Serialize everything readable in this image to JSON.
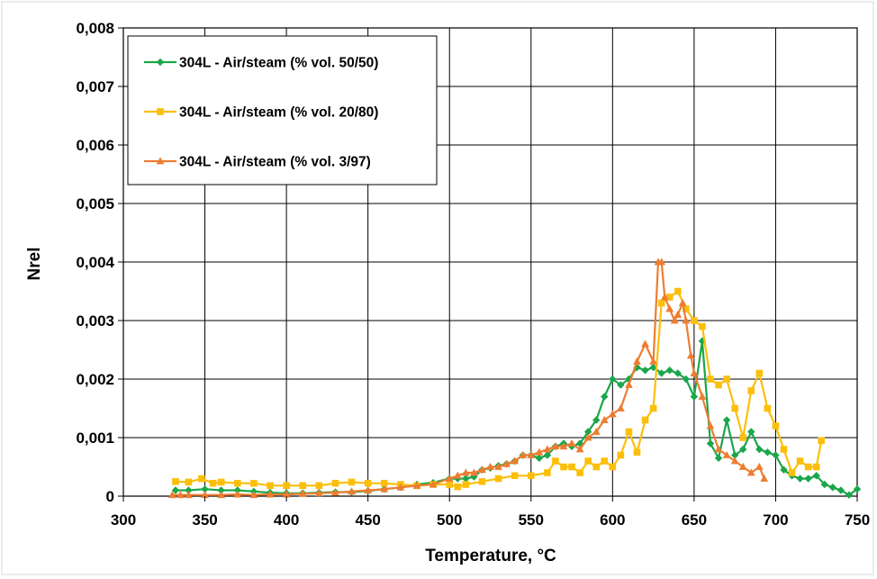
{
  "chart_data": {
    "type": "line",
    "title": "",
    "xlabel": "Temperature, °C",
    "ylabel": "Nrel",
    "xlim": [
      300,
      750
    ],
    "ylim": [
      0,
      0.008
    ],
    "x_ticks": [
      300,
      350,
      400,
      450,
      500,
      550,
      600,
      650,
      700,
      750
    ],
    "x_tick_labels": [
      "300",
      "350",
      "400",
      "450",
      "500",
      "550",
      "600",
      "650",
      "700",
      "750"
    ],
    "y_ticks": [
      0,
      0.001,
      0.002,
      0.003,
      0.004,
      0.005,
      0.006,
      0.007,
      0.008
    ],
    "y_tick_labels": [
      "0",
      "0,001",
      "0,002",
      "0,003",
      "0,004",
      "0,005",
      "0,006",
      "0,007",
      "0,008"
    ],
    "grid": true,
    "legend_position": "top-left",
    "series": [
      {
        "name": "304L - Air/steam (% vol. 50/50)",
        "color": "#1aa64a",
        "marker": "diamond",
        "x": [
          332,
          340,
          350,
          360,
          370,
          380,
          390,
          400,
          410,
          420,
          430,
          440,
          450,
          460,
          470,
          480,
          490,
          500,
          505,
          510,
          515,
          520,
          525,
          530,
          535,
          540,
          545,
          550,
          555,
          560,
          565,
          570,
          575,
          580,
          585,
          590,
          595,
          600,
          605,
          610,
          615,
          620,
          625,
          630,
          635,
          640,
          645,
          650,
          655,
          660,
          665,
          670,
          675,
          680,
          685,
          690,
          695,
          700,
          705,
          710,
          715,
          720,
          725,
          730,
          735,
          740,
          745,
          750
        ],
        "y": [
          0.0001,
          0.0001,
          0.00012,
          0.0001,
          0.0001,
          8e-05,
          6e-05,
          5e-05,
          5e-05,
          6e-05,
          7e-05,
          7e-05,
          9e-05,
          0.00012,
          0.00015,
          0.0002,
          0.00023,
          0.0003,
          0.0003,
          0.0003,
          0.00033,
          0.00045,
          0.00048,
          0.00052,
          0.00055,
          0.0006,
          0.0007,
          0.0007,
          0.00065,
          0.0007,
          0.00085,
          0.0009,
          0.00085,
          0.0009,
          0.0011,
          0.0013,
          0.0017,
          0.002,
          0.0019,
          0.002,
          0.0022,
          0.00215,
          0.0022,
          0.0021,
          0.00215,
          0.0021,
          0.002,
          0.0017,
          0.00265,
          0.0009,
          0.00065,
          0.0013,
          0.0007,
          0.0008,
          0.0011,
          0.0008,
          0.00075,
          0.0007,
          0.00045,
          0.00035,
          0.0003,
          0.0003,
          0.00035,
          0.0002,
          0.00015,
          0.0001,
          2e-05,
          0.00012
        ]
      },
      {
        "name": "304L - Air/steam (% vol. 20/80)",
        "color": "#fbbf0b",
        "marker": "square",
        "x": [
          332,
          340,
          348,
          355,
          360,
          370,
          380,
          390,
          400,
          410,
          420,
          430,
          440,
          450,
          460,
          470,
          480,
          490,
          500,
          505,
          510,
          520,
          530,
          540,
          550,
          560,
          565,
          570,
          575,
          580,
          585,
          590,
          595,
          600,
          605,
          610,
          615,
          620,
          625,
          630,
          635,
          640,
          645,
          650,
          655,
          660,
          665,
          670,
          675,
          680,
          685,
          690,
          695,
          700,
          705,
          710,
          715,
          720,
          725,
          728
        ],
        "y": [
          0.00025,
          0.00024,
          0.0003,
          0.00022,
          0.00024,
          0.00022,
          0.00022,
          0.00018,
          0.00018,
          0.00018,
          0.00018,
          0.00022,
          0.00024,
          0.00022,
          0.00022,
          0.0002,
          0.00018,
          0.0002,
          0.0002,
          0.00016,
          0.0002,
          0.00025,
          0.0003,
          0.00035,
          0.00035,
          0.0004,
          0.0006,
          0.0005,
          0.0005,
          0.0004,
          0.0006,
          0.0005,
          0.0006,
          0.0005,
          0.0007,
          0.0011,
          0.00075,
          0.0013,
          0.0015,
          0.0033,
          0.0034,
          0.0035,
          0.0032,
          0.003,
          0.0029,
          0.002,
          0.0019,
          0.002,
          0.0015,
          0.001,
          0.0018,
          0.0021,
          0.0015,
          0.0012,
          0.0008,
          0.0004,
          0.0006,
          0.0005,
          0.0005,
          0.00095
        ]
      },
      {
        "name": "304L - Air/steam (% vol. 3/97)",
        "color": "#ed7d31",
        "marker": "triangle",
        "x": [
          330,
          335,
          340,
          350,
          360,
          370,
          380,
          390,
          400,
          410,
          420,
          430,
          440,
          450,
          460,
          470,
          480,
          490,
          500,
          505,
          510,
          515,
          520,
          525,
          530,
          535,
          540,
          545,
          550,
          555,
          560,
          565,
          570,
          575,
          580,
          585,
          590,
          595,
          600,
          605,
          610,
          615,
          620,
          625,
          628,
          630,
          632,
          635,
          638,
          640,
          643,
          645,
          648,
          650,
          655,
          660,
          665,
          670,
          675,
          680,
          685,
          690,
          693
        ],
        "y": [
          2e-05,
          2e-05,
          2e-05,
          2e-05,
          2e-05,
          3e-05,
          2e-05,
          3e-05,
          3e-05,
          4e-05,
          5e-05,
          6e-05,
          8e-05,
          0.0001,
          0.00012,
          0.00015,
          0.00018,
          0.0002,
          0.0003,
          0.00035,
          0.0004,
          0.0004,
          0.00045,
          0.0005,
          0.0005,
          0.00055,
          0.0006,
          0.0007,
          0.0007,
          0.00075,
          0.0008,
          0.00085,
          0.00085,
          0.0009,
          0.0008,
          0.001,
          0.0011,
          0.0013,
          0.0014,
          0.0015,
          0.0019,
          0.0023,
          0.0026,
          0.0023,
          0.004,
          0.004,
          0.0034,
          0.0032,
          0.003,
          0.0031,
          0.0033,
          0.003,
          0.0024,
          0.0021,
          0.0017,
          0.0012,
          0.0008,
          0.0007,
          0.0006,
          0.0005,
          0.0004,
          0.0005,
          0.0003
        ]
      }
    ]
  }
}
